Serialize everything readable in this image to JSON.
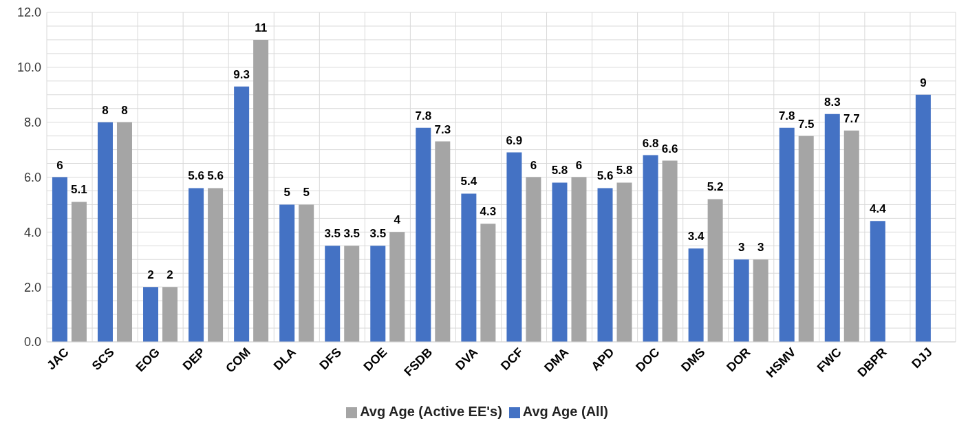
{
  "chart_data": {
    "type": "bar",
    "categories": [
      "JAC",
      "SCS",
      "EOG",
      "DEP",
      "COM",
      "DLA",
      "DFS",
      "DOE",
      "FSDB",
      "DVA",
      "DCF",
      "DMA",
      "APD",
      "DOC",
      "DMS",
      "DOR",
      "HSMV",
      "FWC",
      "DBPR",
      "DJJ"
    ],
    "series": [
      {
        "name": "Avg Age (All)",
        "color": "#4472c4",
        "values": [
          6,
          8,
          2,
          5.6,
          9.3,
          5,
          3.5,
          3.5,
          7.8,
          5.4,
          6.9,
          5.8,
          5.6,
          6.8,
          3.4,
          3,
          7.8,
          8.3,
          4.4,
          9
        ]
      },
      {
        "name": "Avg Age (Active EE's)",
        "color": "#a5a5a5",
        "values": [
          5.1,
          8,
          2,
          5.6,
          11,
          5,
          3.5,
          4,
          7.3,
          4.3,
          6,
          6,
          5.8,
          6.6,
          5.2,
          3,
          7.5,
          7.7,
          null,
          null
        ]
      }
    ],
    "ylim": [
      0,
      12
    ],
    "yticks": [
      {
        "value": 0,
        "label": "0.0"
      },
      {
        "value": 0.5,
        "label": null
      },
      {
        "value": 1,
        "label": null
      },
      {
        "value": 1.5,
        "label": null
      },
      {
        "value": 2,
        "label": "2.0"
      },
      {
        "value": 2.5,
        "label": null
      },
      {
        "value": 3,
        "label": null
      },
      {
        "value": 3.5,
        "label": null
      },
      {
        "value": 4,
        "label": "4.0"
      },
      {
        "value": 4.5,
        "label": null
      },
      {
        "value": 5,
        "label": null
      },
      {
        "value": 5.5,
        "label": null
      },
      {
        "value": 6,
        "label": "6.0"
      },
      {
        "value": 6.5,
        "label": null
      },
      {
        "value": 7,
        "label": null
      },
      {
        "value": 7.5,
        "label": null
      },
      {
        "value": 8,
        "label": "8.0"
      },
      {
        "value": 8.5,
        "label": null
      },
      {
        "value": 9,
        "label": null
      },
      {
        "value": 9.5,
        "label": null
      },
      {
        "value": 10,
        "label": "10.0"
      },
      {
        "value": 10.5,
        "label": null
      },
      {
        "value": 11,
        "label": null
      },
      {
        "value": 11.5,
        "label": null
      },
      {
        "value": 12,
        "label": "12.0"
      }
    ],
    "grid": true,
    "legend": "bottom",
    "data_labels": true
  }
}
